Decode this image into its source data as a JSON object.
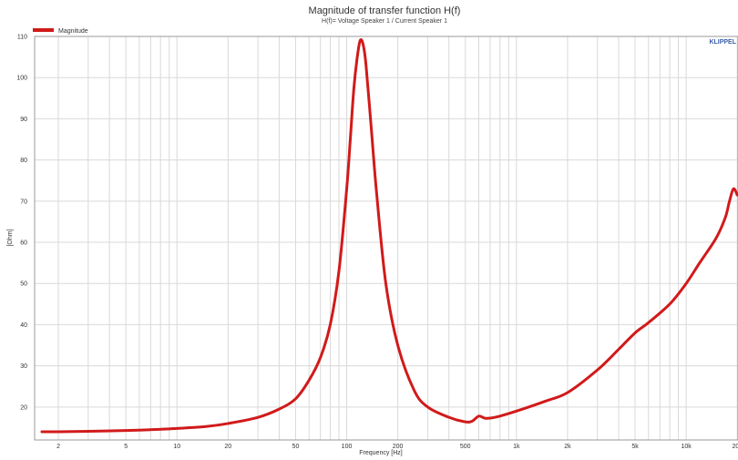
{
  "chart_data": {
    "type": "line",
    "title": "Magnitude of transfer function H(f)",
    "subtitle": "H(f)= Voltage Speaker 1 / Current Speaker 1",
    "xlabel": "Frequency [Hz]",
    "ylabel": "[Ohm]",
    "brand": "KLIPPEL",
    "x_scale": "log",
    "xlim": [
      1.45,
      20200
    ],
    "ylim": [
      12,
      110
    ],
    "grid": true,
    "legend_position": "top-left",
    "colors": {
      "series": "#d11a1a",
      "grid": "#d9d9d9",
      "axis": "#999999"
    },
    "x_ticks": [
      {
        "value": 2,
        "label": "2"
      },
      {
        "value": 5,
        "label": "5"
      },
      {
        "value": 10,
        "label": "10"
      },
      {
        "value": 20,
        "label": "20"
      },
      {
        "value": 50,
        "label": "50"
      },
      {
        "value": 100,
        "label": "100"
      },
      {
        "value": 200,
        "label": "200"
      },
      {
        "value": 500,
        "label": "500"
      },
      {
        "value": 1000,
        "label": "1k"
      },
      {
        "value": 2000,
        "label": "2k"
      },
      {
        "value": 5000,
        "label": "5k"
      },
      {
        "value": 10000,
        "label": "10k"
      },
      {
        "value": 20000,
        "label": "20k"
      }
    ],
    "y_ticks": [
      {
        "value": 20,
        "label": "20"
      },
      {
        "value": 30,
        "label": "30"
      },
      {
        "value": 40,
        "label": "40"
      },
      {
        "value": 50,
        "label": "50"
      },
      {
        "value": 60,
        "label": "60"
      },
      {
        "value": 70,
        "label": "70"
      },
      {
        "value": 80,
        "label": "80"
      },
      {
        "value": 90,
        "label": "90"
      },
      {
        "value": 100,
        "label": "100"
      },
      {
        "value": 110,
        "label": "110"
      }
    ],
    "series": [
      {
        "name": "Magnitude",
        "x": [
          1.6,
          2,
          3,
          5,
          7,
          10,
          15,
          20,
          30,
          40,
          50,
          60,
          70,
          80,
          90,
          100,
          105,
          110,
          115,
          120,
          125,
          130,
          140,
          150,
          170,
          200,
          250,
          300,
          400,
          500,
          550,
          600,
          650,
          700,
          800,
          1000,
          1500,
          2000,
          3000,
          4000,
          5000,
          6000,
          8000,
          10000,
          12000,
          15000,
          17000,
          18000,
          19000,
          20000
        ],
        "values": [
          14,
          14,
          14.1,
          14.3,
          14.5,
          14.8,
          15.3,
          16,
          17.5,
          19.5,
          22,
          26.5,
          32,
          40,
          53,
          73,
          85,
          97,
          104.5,
          109,
          108,
          103,
          87,
          72,
          50,
          35,
          24,
          20,
          17.5,
          16.4,
          16.6,
          17.8,
          17.3,
          17.3,
          17.8,
          19,
          21.5,
          23.5,
          29,
          34,
          38,
          40.5,
          45,
          50,
          55,
          61,
          66,
          70,
          73,
          71.5
        ]
      }
    ]
  }
}
